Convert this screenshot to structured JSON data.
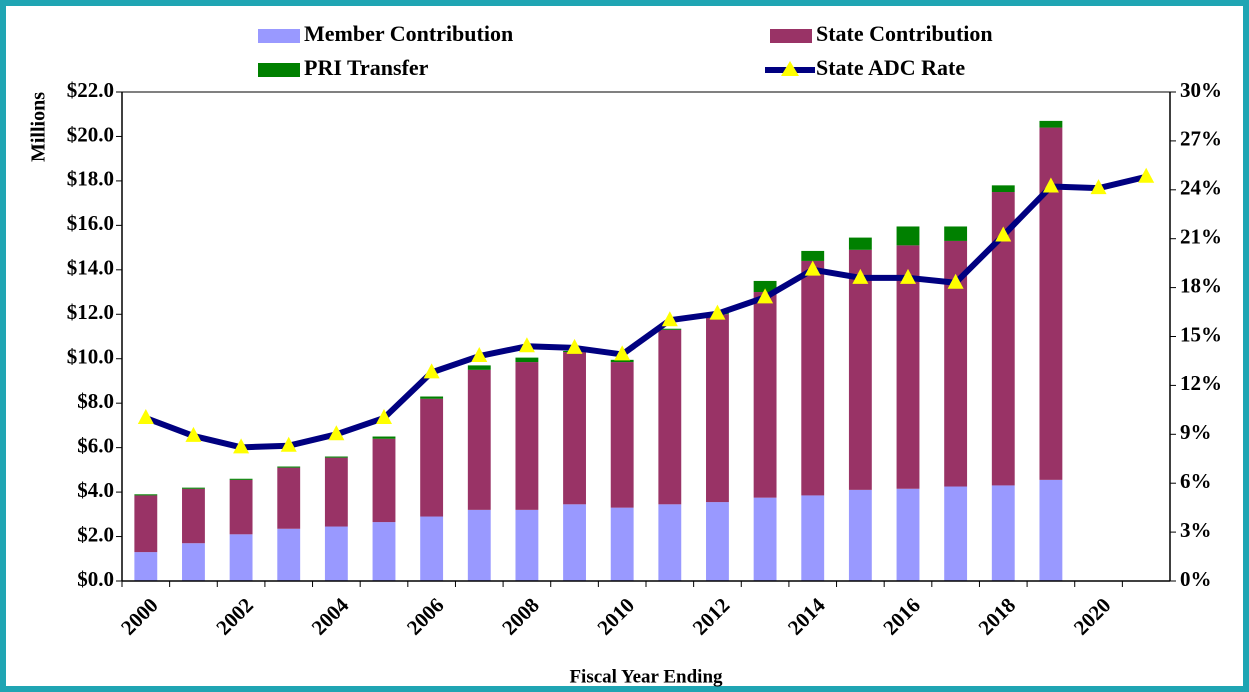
{
  "chart_data": {
    "type": "bar",
    "x_label": "Fiscal Year Ending",
    "y_label": "Millions",
    "categories": [
      "2000",
      null,
      "2002",
      null,
      "2004",
      null,
      "2006",
      null,
      "2008",
      null,
      "2010",
      null,
      "2012",
      null,
      "2014",
      null,
      "2016",
      null,
      "2018",
      null,
      "2020",
      null
    ],
    "series": [
      {
        "name": "Member Contribution",
        "type": "bar",
        "color": "#9999ff",
        "values": [
          1.3,
          1.7,
          2.1,
          2.35,
          2.45,
          2.65,
          2.9,
          3.2,
          3.2,
          3.45,
          3.3,
          3.45,
          3.55,
          3.75,
          3.85,
          4.1,
          4.15,
          4.25,
          4.3,
          4.55,
          null,
          null
        ]
      },
      {
        "name": "State Contribution",
        "type": "bar",
        "color": "#993366",
        "values": [
          2.55,
          2.45,
          2.45,
          2.75,
          3.1,
          3.75,
          5.3,
          6.3,
          6.65,
          6.85,
          6.55,
          7.85,
          8.45,
          9.25,
          10.55,
          10.8,
          10.95,
          11.05,
          13.2,
          15.85,
          null,
          null
        ]
      },
      {
        "name": "PRI Transfer",
        "type": "bar",
        "color": "#008000",
        "values": [
          0.05,
          0.05,
          0.05,
          0.05,
          0.05,
          0.1,
          0.1,
          0.2,
          0.2,
          0.05,
          0.1,
          0.05,
          0.05,
          0.5,
          0.45,
          0.55,
          0.85,
          0.65,
          0.3,
          0.3,
          null,
          null
        ]
      },
      {
        "name": "State ADC Rate",
        "type": "line",
        "axis": "y2",
        "color": "#000080",
        "marker_color": "#ffff00",
        "values": [
          10.0,
          8.9,
          8.2,
          8.3,
          9.0,
          10.0,
          12.8,
          13.8,
          14.4,
          14.3,
          13.9,
          16.0,
          16.4,
          17.4,
          19.1,
          18.6,
          18.6,
          18.3,
          21.2,
          24.2,
          24.1,
          24.8
        ]
      }
    ],
    "ylim": [
      0,
      22
    ],
    "yticks": [
      {
        "value": 0,
        "label": "$0.0"
      },
      {
        "value": 2,
        "label": "$2.0"
      },
      {
        "value": 4,
        "label": "$4.0"
      },
      {
        "value": 6,
        "label": "$6.0"
      },
      {
        "value": 8,
        "label": "$8.0"
      },
      {
        "value": 10,
        "label": "$10.0"
      },
      {
        "value": 12,
        "label": "$12.0"
      },
      {
        "value": 14,
        "label": "$14.0"
      },
      {
        "value": 16,
        "label": "$16.0"
      },
      {
        "value": 18,
        "label": "$18.0"
      },
      {
        "value": 20,
        "label": "$20.0"
      },
      {
        "value": 22,
        "label": "$22.0"
      }
    ],
    "y2lim": [
      0,
      30
    ],
    "y2ticks": [
      {
        "value": 0,
        "label": "0%"
      },
      {
        "value": 3,
        "label": "3%"
      },
      {
        "value": 6,
        "label": "6%"
      },
      {
        "value": 9,
        "label": "9%"
      },
      {
        "value": 12,
        "label": "12%"
      },
      {
        "value": 15,
        "label": "15%"
      },
      {
        "value": 18,
        "label": "18%"
      },
      {
        "value": 21,
        "label": "21%"
      },
      {
        "value": 24,
        "label": "24%"
      },
      {
        "value": 27,
        "label": "27%"
      },
      {
        "value": 30,
        "label": "30%"
      }
    ],
    "grid": false
  }
}
